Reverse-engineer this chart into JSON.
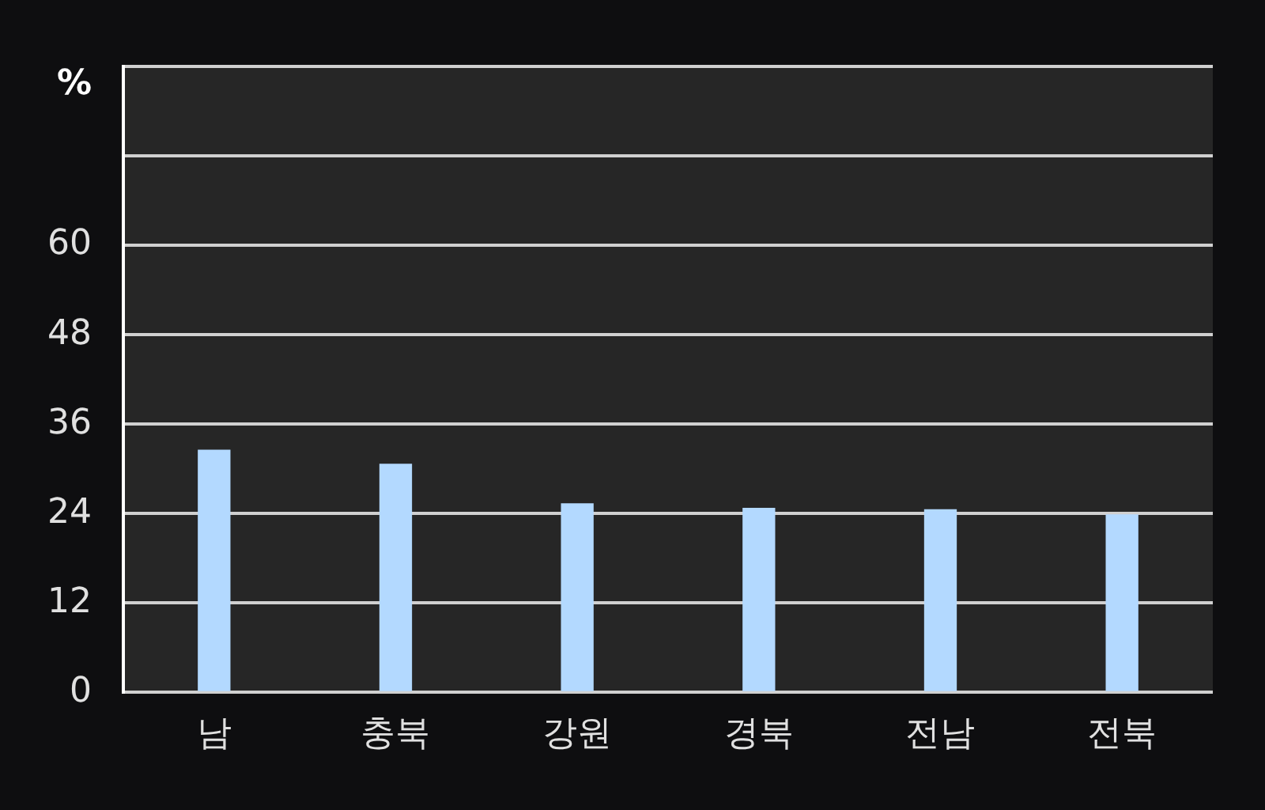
{
  "chart_data": {
    "type": "bar",
    "ylabel": "%",
    "categories": [
      "남",
      "충북",
      "강원",
      "경북",
      "전남",
      "전북"
    ],
    "values": [
      32.5,
      30.6,
      25.3,
      24.7,
      24.5,
      23.8
    ],
    "color": "#b3d9ff",
    "ylim": [
      0,
      84
    ],
    "yticks": [
      0,
      12,
      24,
      36,
      48,
      60,
      {
        "value": 72,
        "label": null
      },
      {
        "value": 84,
        "label": null
      }
    ],
    "grid": "y",
    "legend": false
  }
}
